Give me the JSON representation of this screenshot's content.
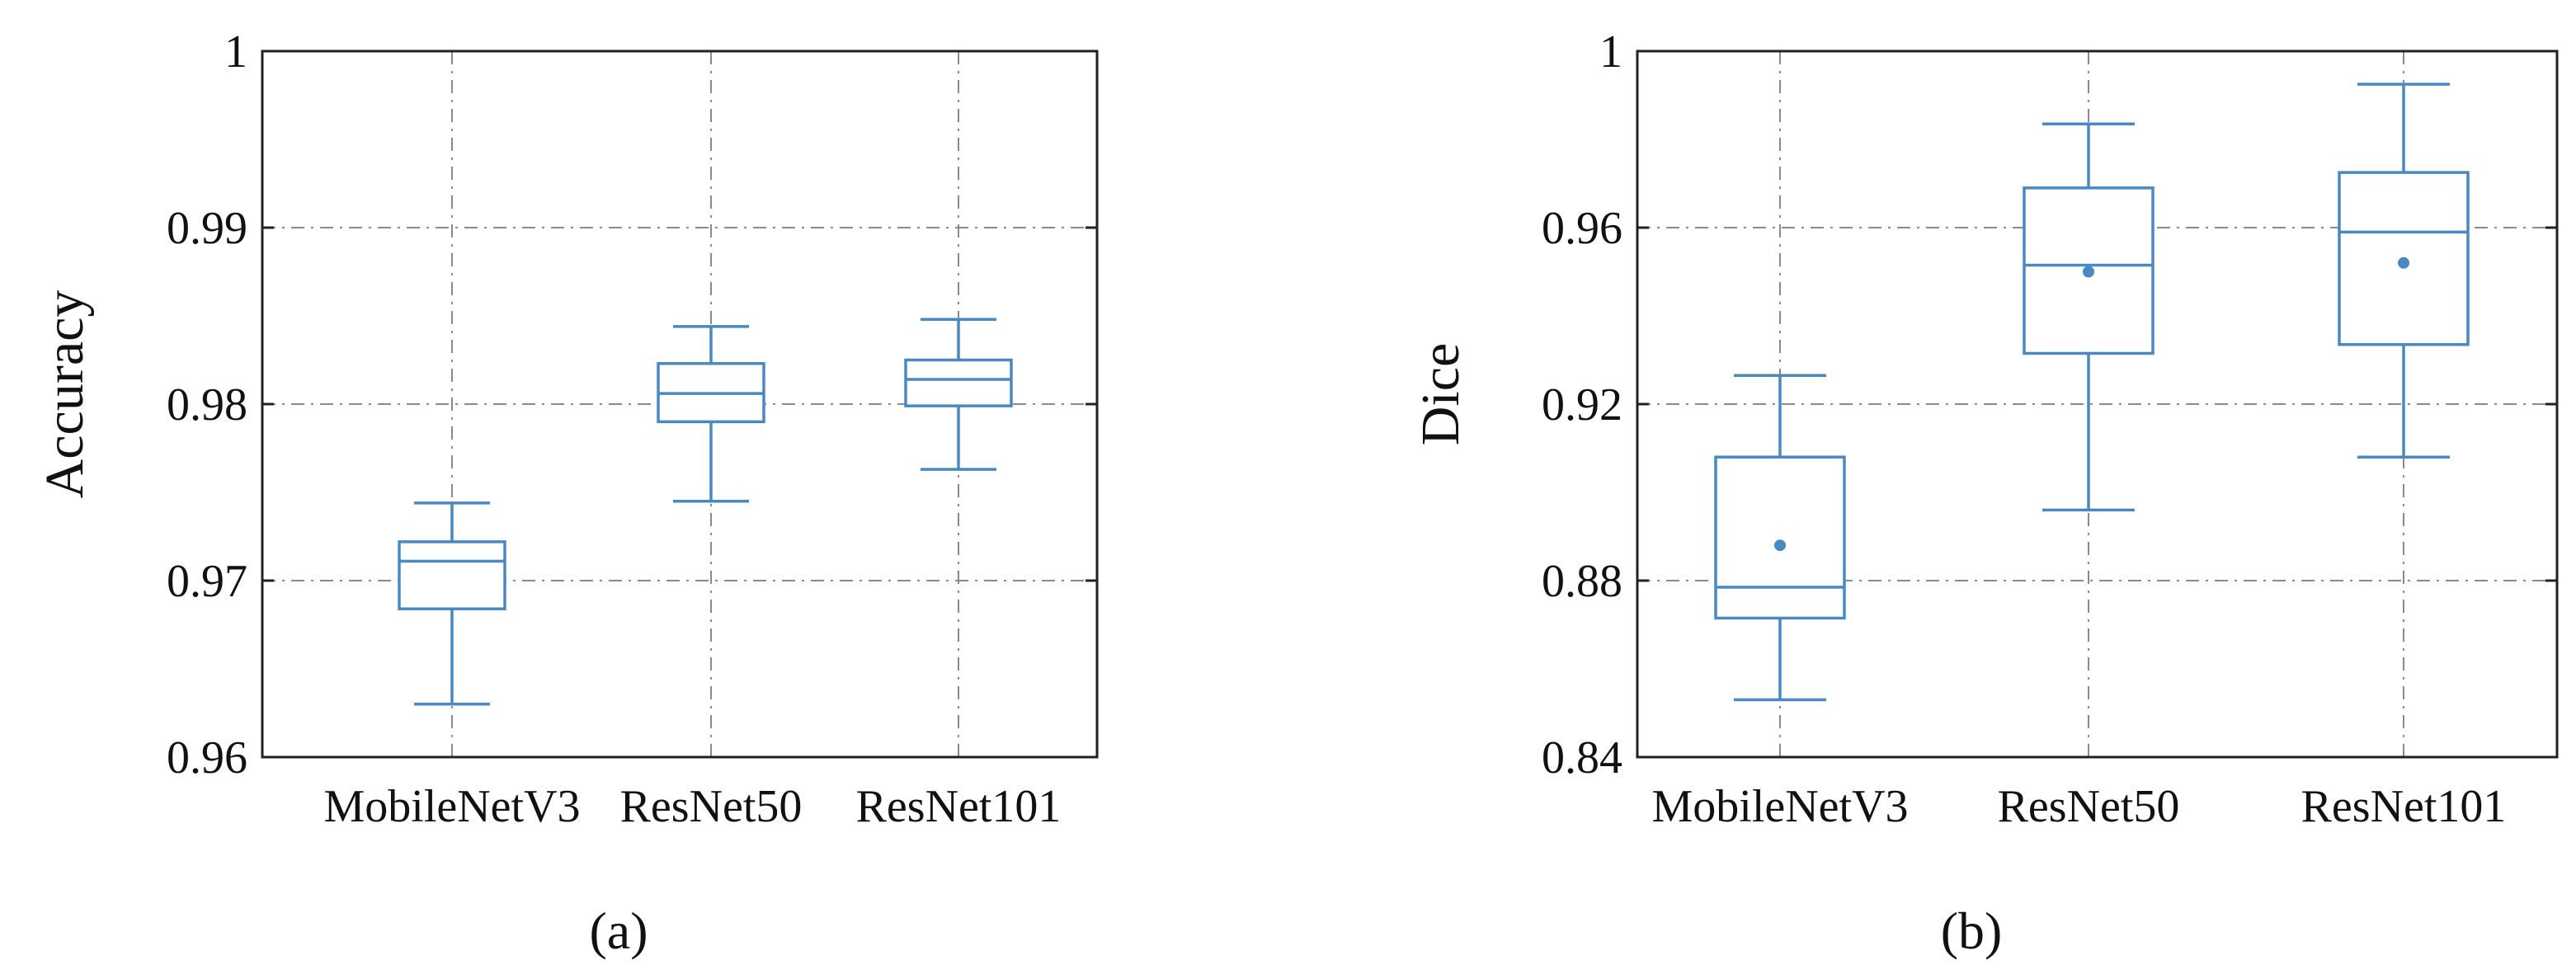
{
  "chart_data": [
    {
      "type": "box",
      "panel_label": "(a)",
      "ylabel": "Accuracy",
      "xlabel": "",
      "categories": [
        "MobileNetV3",
        "ResNet50",
        "ResNet101"
      ],
      "ylim": [
        0.96,
        1.0
      ],
      "yticks": [
        0.96,
        0.97,
        0.98,
        0.99,
        1.0
      ],
      "ytick_labels": [
        "0.96",
        "0.97",
        "0.98",
        "0.99",
        "1"
      ],
      "grid": true,
      "color": "#4a89c0",
      "boxes": [
        {
          "whislo": 0.963,
          "q1": 0.9684,
          "med": 0.9711,
          "q3": 0.9722,
          "whishi": 0.9744
        },
        {
          "whislo": 0.9745,
          "q1": 0.979,
          "med": 0.9806,
          "q3": 0.9823,
          "whishi": 0.9844
        },
        {
          "whislo": 0.9763,
          "q1": 0.9799,
          "med": 0.9814,
          "q3": 0.9825,
          "whishi": 0.9848
        }
      ]
    },
    {
      "type": "box",
      "panel_label": "(b)",
      "ylabel": "Dice",
      "xlabel": "",
      "categories": [
        "MobileNetV3",
        "ResNet50",
        "ResNet101"
      ],
      "ylim": [
        0.84,
        1.0
      ],
      "yticks": [
        0.84,
        0.88,
        0.92,
        0.96,
        1.0
      ],
      "ytick_labels": [
        "0.84",
        "0.88",
        "0.92",
        "0.96",
        "1"
      ],
      "grid": true,
      "color": "#4a89c0",
      "boxes": [
        {
          "whislo": 0.853,
          "q1": 0.8715,
          "med": 0.8785,
          "q3": 0.908,
          "whishi": 0.9265,
          "mean": 0.888
        },
        {
          "whislo": 0.896,
          "q1": 0.9315,
          "med": 0.9515,
          "q3": 0.969,
          "whishi": 0.9835,
          "mean": 0.95
        },
        {
          "whislo": 0.908,
          "q1": 0.9335,
          "med": 0.959,
          "q3": 0.9725,
          "whishi": 0.9925,
          "mean": 0.952
        }
      ]
    }
  ]
}
